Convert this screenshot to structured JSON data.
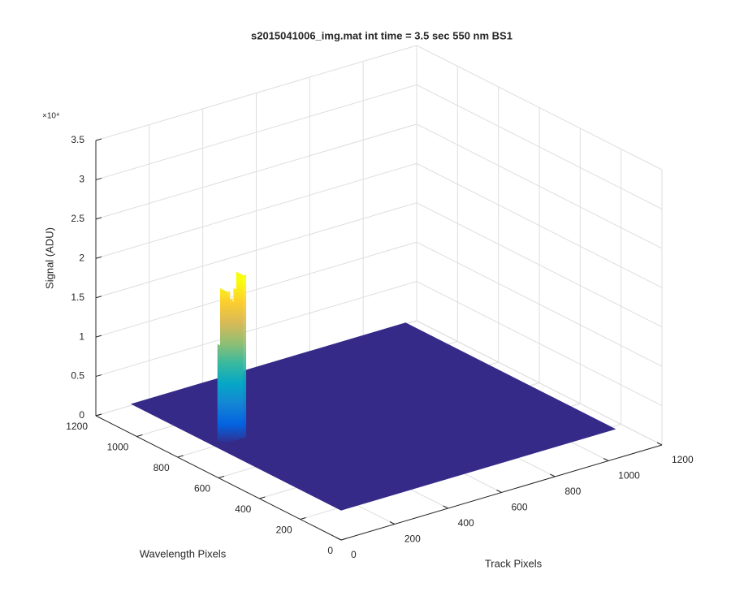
{
  "chart_data": {
    "type": "surface3d",
    "title": "s2015041006_img.mat int time = 3.5 sec  550 nm BS1",
    "xlabel": "Track Pixels",
    "ylabel": "Wavelength Pixels",
    "zlabel": "Signal (ADU)",
    "zmultiplier": "×10⁴",
    "xlim": [
      0,
      1200
    ],
    "xticks": [
      0,
      200,
      400,
      600,
      800,
      1000,
      1200
    ],
    "ylim": [
      0,
      1200
    ],
    "yticks": [
      0,
      200,
      400,
      600,
      800,
      1000,
      1200
    ],
    "zlim": [
      0,
      3.5
    ],
    "zticks": [
      0,
      0.5,
      1,
      1.5,
      2,
      2.5,
      3,
      3.5
    ],
    "grid": true,
    "surface": {
      "x": [
        0,
        1024
      ],
      "y": [
        0,
        1024
      ],
      "level": 0.38,
      "color": "#352a87"
    },
    "peak": {
      "y": 633,
      "x": [
        40,
        50,
        60,
        70,
        80,
        90,
        100,
        110
      ],
      "values": [
        1.6,
        2.3,
        2.2,
        2.0,
        2.05,
        2.1,
        2.25,
        2.45
      ]
    },
    "colormap": [
      "#352a87",
      "#0363e1",
      "#1485d4",
      "#06a7c6",
      "#38b99e",
      "#92bf73",
      "#d9ba56",
      "#fcce2e",
      "#f9fb0e"
    ]
  }
}
